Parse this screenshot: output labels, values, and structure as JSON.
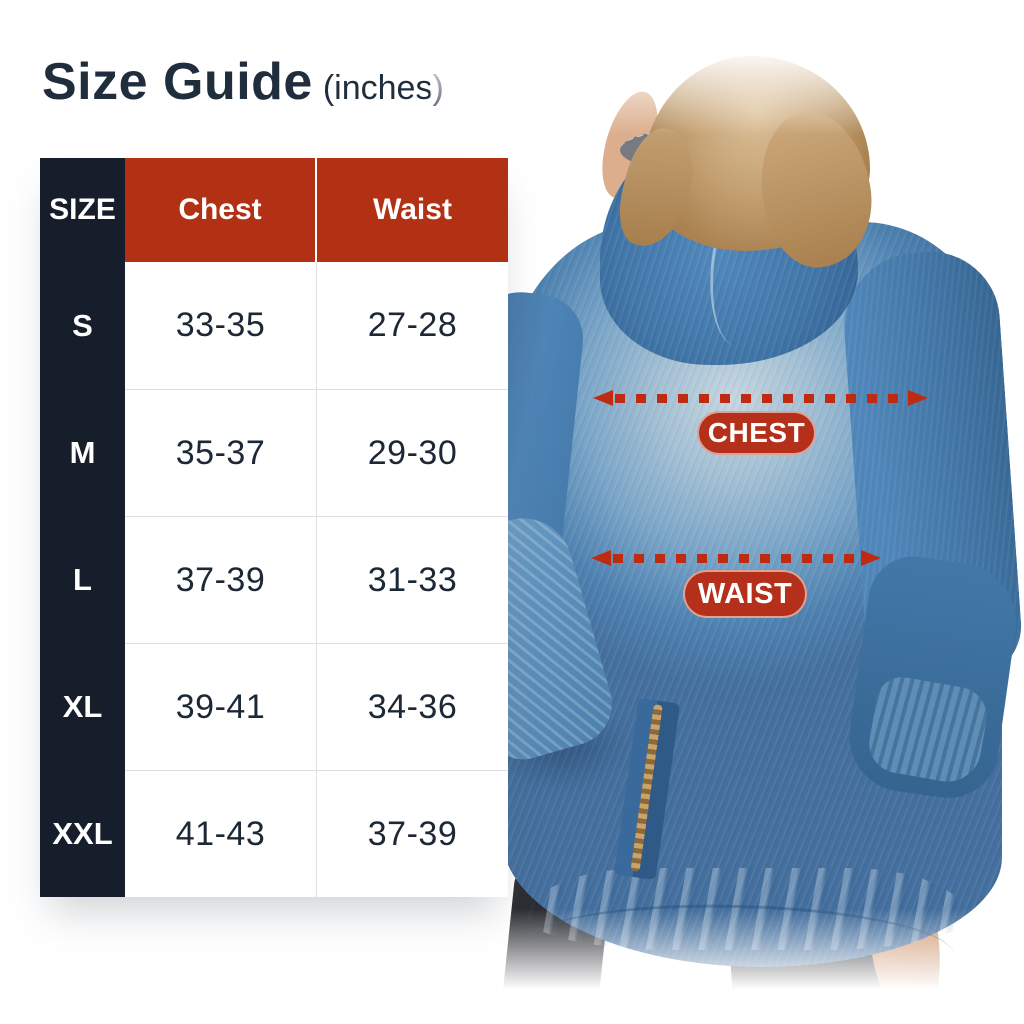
{
  "title": {
    "main": "Size Guide",
    "unit": "(inches)"
  },
  "chart_data": {
    "type": "table",
    "title": "Size Guide (inches)",
    "columns": [
      "SIZE",
      "Chest",
      "Waist"
    ],
    "rows": [
      [
        "S",
        "33-35",
        "27-28"
      ],
      [
        "M",
        "35-37",
        "29-30"
      ],
      [
        "L",
        "37-39",
        "31-33"
      ],
      [
        "XL",
        "39-41",
        "34-36"
      ],
      [
        "XXL",
        "41-43",
        "37-39"
      ]
    ]
  },
  "measurement_labels": {
    "chest": "CHEST",
    "waist": "WAIST"
  },
  "colors": {
    "accent_red": "#b23014",
    "badge_red": "#b5301a",
    "arrow_red": "#bf2b10",
    "header_dark": "#171e2b",
    "text_navy": "#1c2836",
    "denim_blue": "#4e82b1",
    "denim_wash_light": "#c6d6e1",
    "hair_blonde": "#c5a274"
  }
}
